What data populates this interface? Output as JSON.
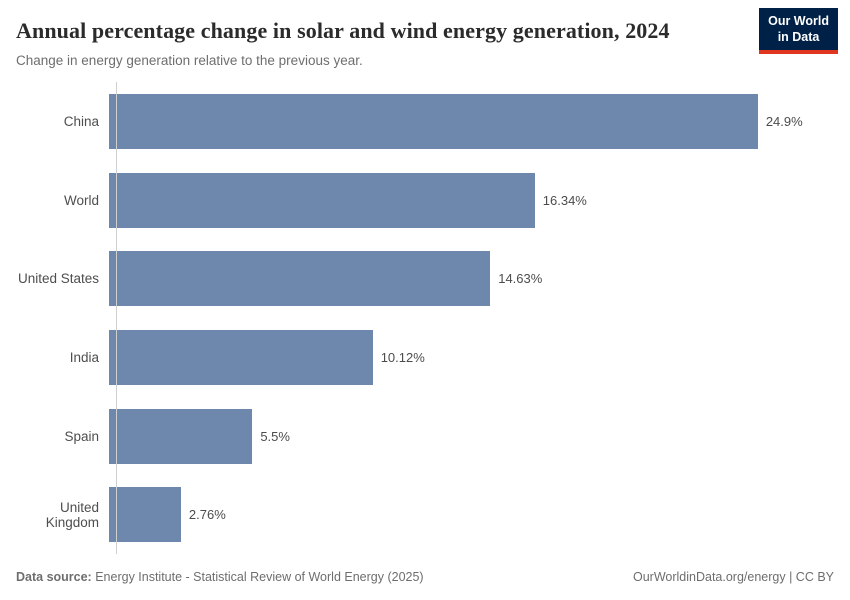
{
  "header": {
    "title": "Annual percentage change in solar and wind energy generation, 2024",
    "subtitle": "Change in energy generation relative to the previous year.",
    "logo": {
      "line1": "Our World",
      "line2": "in Data"
    }
  },
  "chart_data": {
    "type": "bar",
    "orientation": "horizontal",
    "title": "Annual percentage change in solar and wind energy generation, 2024",
    "subtitle": "Change in energy generation relative to the previous year.",
    "categories": [
      "China",
      "World",
      "United States",
      "India",
      "Spain",
      "United Kingdom"
    ],
    "values": [
      24.9,
      16.34,
      14.63,
      10.12,
      5.5,
      2.76
    ],
    "display_values": [
      "24.9%",
      "16.34%",
      "14.63%",
      "10.12%",
      "5.5%",
      "2.76%"
    ],
    "xlabel": "",
    "ylabel": "",
    "xlim": [
      0,
      27.5
    ],
    "grid": false,
    "legend": "none",
    "value_labels": "outside-end",
    "bar_color": "#6d87ad",
    "axis_line_color": "#cfcfcf"
  },
  "footer": {
    "source_label": "Data source:",
    "source_text": " Energy Institute - Statistical Review of World Energy (2025)",
    "right_text": "OurWorldinData.org/energy | CC BY"
  }
}
